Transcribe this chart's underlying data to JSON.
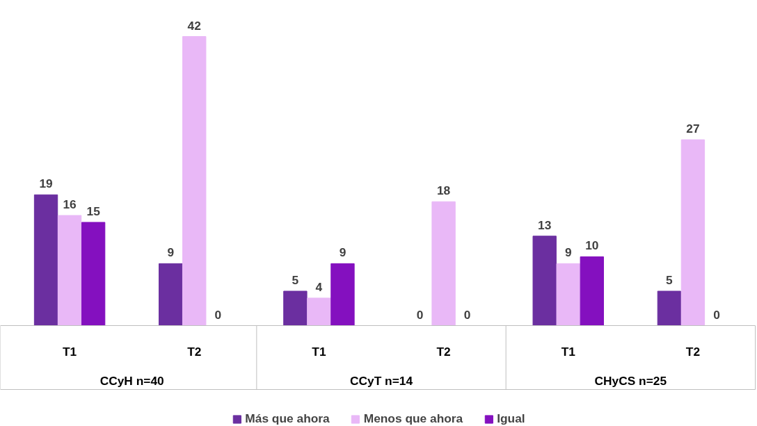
{
  "chart_data": {
    "type": "bar",
    "categories": [
      "T1",
      "T2",
      "T1",
      "T2",
      "T1",
      "T2"
    ],
    "annotations": [
      "CCyH n=40",
      "CCyT n=14",
      "CHyCS n=25"
    ],
    "series": [
      {
        "name": "Más que ahora",
        "color": "#6b2fa0",
        "values": [
          19,
          9,
          5,
          0,
          13,
          5
        ]
      },
      {
        "name": "Menos que ahora",
        "color": "#e9b8f7",
        "values": [
          16,
          42,
          4,
          18,
          9,
          27
        ]
      },
      {
        "name": "Igual",
        "color": "#8410bf",
        "values": [
          15,
          0,
          9,
          0,
          10,
          0
        ]
      }
    ],
    "data_labels": true,
    "legend": "bottom",
    "grid": false
  }
}
